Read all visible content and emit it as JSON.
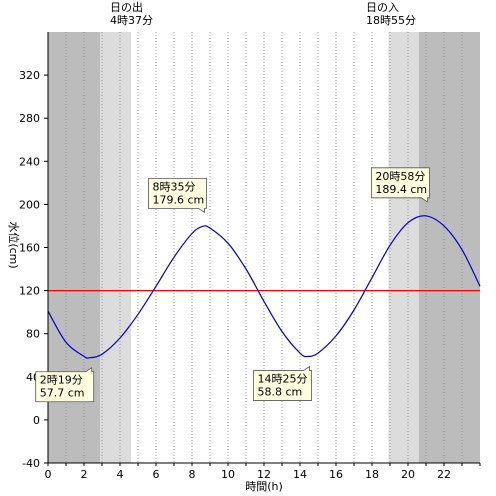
{
  "chart_data": {
    "type": "line",
    "xlabel": "時間(h)",
    "ylabel": "水位(cm)",
    "xlim": [
      0,
      24
    ],
    "ylim": [
      -40,
      360
    ],
    "x_ticks": [
      0,
      2,
      4,
      6,
      8,
      10,
      12,
      14,
      16,
      18,
      20,
      22
    ],
    "y_ticks": [
      -40,
      0,
      40,
      80,
      120,
      160,
      200,
      240,
      280,
      320
    ],
    "grid": "vertical dotted every hour",
    "reference_line": {
      "value": 120,
      "color": "#ff0000"
    },
    "sunrise": {
      "label": "日の出",
      "time_label": "4時37分",
      "hour": 4.617
    },
    "sunset": {
      "label": "日の入",
      "time_label": "18時55分",
      "hour": 18.917
    },
    "twilight_before_sunrise": [
      2.9,
      4.617
    ],
    "twilight_after_sunset": [
      18.917,
      20.6
    ],
    "extremes": [
      {
        "kind": "low",
        "hour": 2.317,
        "value": 57.7,
        "time_label": "2時19分",
        "value_label": "57.7 cm"
      },
      {
        "kind": "high",
        "hour": 8.583,
        "value": 179.6,
        "time_label": "8時35分",
        "value_label": "179.6 cm"
      },
      {
        "kind": "low",
        "hour": 14.417,
        "value": 58.8,
        "time_label": "14時25分",
        "value_label": "58.8 cm"
      },
      {
        "kind": "high",
        "hour": 20.967,
        "value": 189.4,
        "time_label": "20時58分",
        "value_label": "189.4 cm"
      }
    ],
    "series": [
      {
        "color": "#0000cc",
        "x": [
          0,
          1,
          2,
          2.317,
          3,
          4,
          5,
          6,
          7,
          8,
          8.583,
          9,
          10,
          11,
          12,
          13,
          14,
          14.417,
          15,
          16,
          17,
          18,
          19,
          20,
          20.967,
          22,
          23,
          24
        ],
        "y": [
          101,
          72,
          59,
          57.7,
          61,
          76,
          98,
          124,
          151,
          173,
          179.6,
          178,
          164,
          140,
          110,
          82,
          62,
          58.8,
          62,
          78,
          102,
          132,
          162,
          183,
          189.4,
          180,
          158,
          124
        ]
      }
    ]
  },
  "colors": {
    "night": "#bcbcbc",
    "twilight": "#dcdcdc",
    "day": "#ffffff",
    "bubble_fill": "#ffffe0"
  }
}
